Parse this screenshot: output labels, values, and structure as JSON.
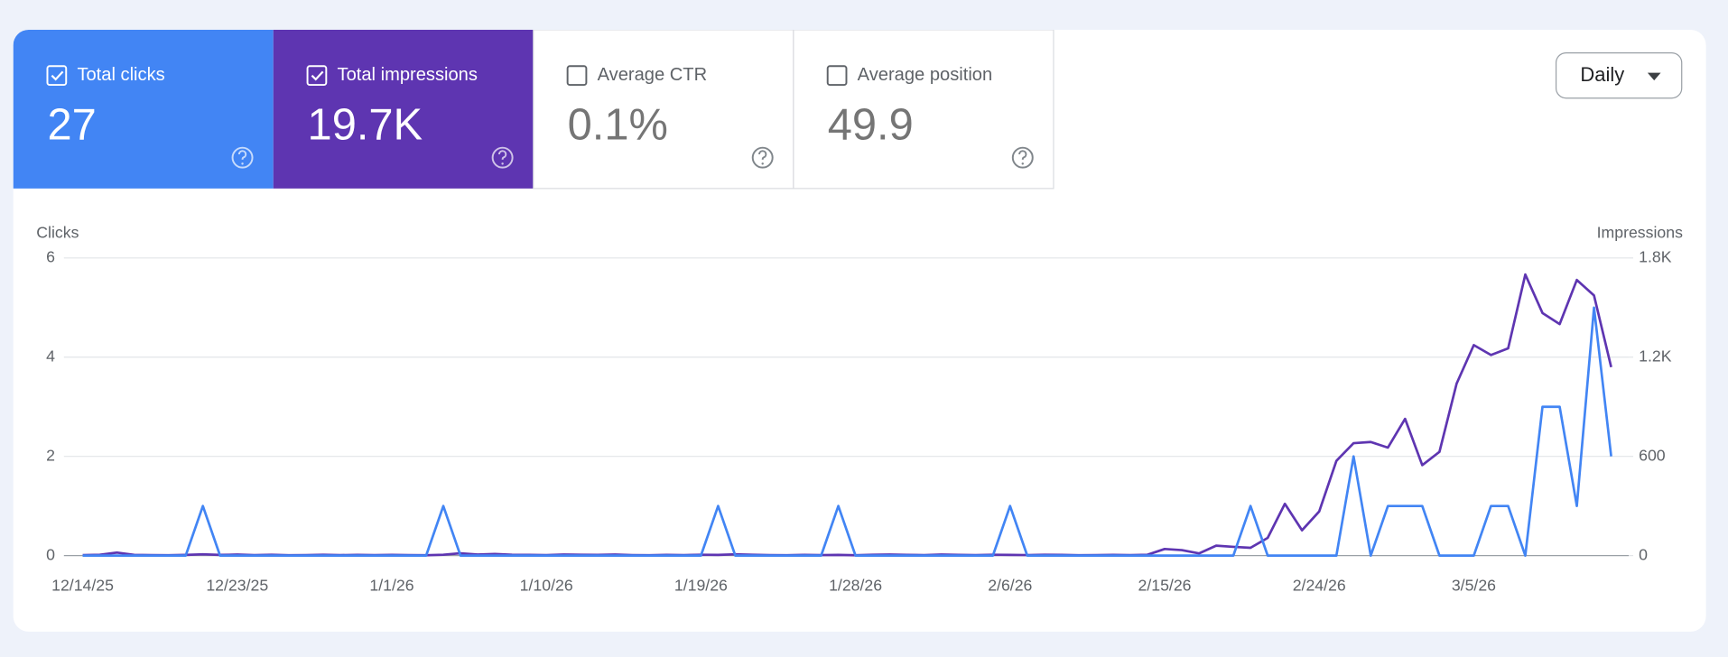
{
  "metrics": [
    {
      "label": "Total clicks",
      "value": "27",
      "checked": true,
      "color": "#4285f4"
    },
    {
      "label": "Total impressions",
      "value": "19.7K",
      "checked": true,
      "color": "#5e35b1"
    },
    {
      "label": "Average CTR",
      "value": "0.1%",
      "checked": false,
      "color": "#ffffff"
    },
    {
      "label": "Average position",
      "value": "49.9",
      "checked": false,
      "color": "#ffffff"
    }
  ],
  "period": "Daily",
  "chart_data": {
    "type": "line",
    "y_label": "Clicks",
    "y2_label": "Impressions",
    "categories": [
      "12/14/25",
      null,
      null,
      null,
      null,
      null,
      null,
      null,
      null,
      "12/23/25",
      null,
      null,
      null,
      null,
      null,
      null,
      null,
      null,
      "1/1/26",
      null,
      null,
      null,
      null,
      null,
      null,
      null,
      null,
      "1/10/26",
      null,
      null,
      null,
      null,
      null,
      null,
      null,
      null,
      "1/19/26",
      null,
      null,
      null,
      null,
      null,
      null,
      null,
      null,
      "1/28/26",
      null,
      null,
      null,
      null,
      null,
      null,
      null,
      null,
      "2/6/26",
      null,
      null,
      null,
      null,
      null,
      null,
      null,
      null,
      "2/15/26",
      null,
      null,
      null,
      null,
      null,
      null,
      null,
      null,
      "2/24/26",
      null,
      null,
      null,
      null,
      null,
      null,
      null,
      null,
      "3/5/26",
      null,
      null,
      null,
      null,
      null,
      null,
      null,
      null
    ],
    "series": [
      {
        "name": "Clicks",
        "color": "#4285f4",
        "axis": "y",
        "values": [
          0,
          0,
          0,
          0,
          0,
          0,
          0,
          1,
          0,
          0,
          0,
          0,
          0,
          0,
          0,
          0,
          0,
          0,
          0,
          0,
          0,
          1,
          0,
          0,
          0,
          0,
          0,
          0,
          0,
          0,
          0,
          0,
          0,
          0,
          0,
          0,
          0,
          1,
          0,
          0,
          0,
          0,
          0,
          0,
          1,
          0,
          0,
          0,
          0,
          0,
          0,
          0,
          0,
          0,
          1,
          0,
          0,
          0,
          0,
          0,
          0,
          0,
          0,
          0,
          0,
          0,
          0,
          0,
          1,
          0,
          0,
          0,
          0,
          0,
          2,
          0,
          1,
          1,
          1,
          0,
          0,
          0,
          1,
          1,
          0,
          3,
          3,
          1,
          5,
          2
        ]
      },
      {
        "name": "Impressions",
        "color": "#5e35b1",
        "axis": "y2",
        "values": [
          3,
          5,
          18,
          4,
          3,
          2,
          4,
          8,
          4,
          6,
          3,
          5,
          2,
          3,
          5,
          3,
          4,
          3,
          4,
          3,
          2,
          5,
          14,
          6,
          10,
          5,
          4,
          3,
          6,
          5,
          4,
          6,
          3,
          2,
          4,
          3,
          5,
          4,
          8,
          5,
          3,
          2,
          4,
          3,
          4,
          2,
          5,
          6,
          4,
          3,
          6,
          4,
          3,
          5,
          4,
          3,
          5,
          4,
          2,
          3,
          4,
          3,
          5,
          40,
          33,
          13,
          60,
          53,
          47,
          107,
          313,
          153,
          267,
          573,
          680,
          687,
          653,
          827,
          547,
          627,
          1040,
          1273,
          1213,
          1253,
          1700,
          1467,
          1400,
          1667,
          1573,
          1140
        ]
      }
    ],
    "ylim": [
      0,
      6
    ],
    "yticks": [
      0,
      2,
      4,
      6
    ],
    "y2lim": [
      0,
      1800
    ],
    "y2ticks": [
      0,
      600,
      {
        "value": 1200,
        "label": "1.2K"
      },
      {
        "value": 1800,
        "label": "1.8K"
      }
    ],
    "grid": true
  }
}
